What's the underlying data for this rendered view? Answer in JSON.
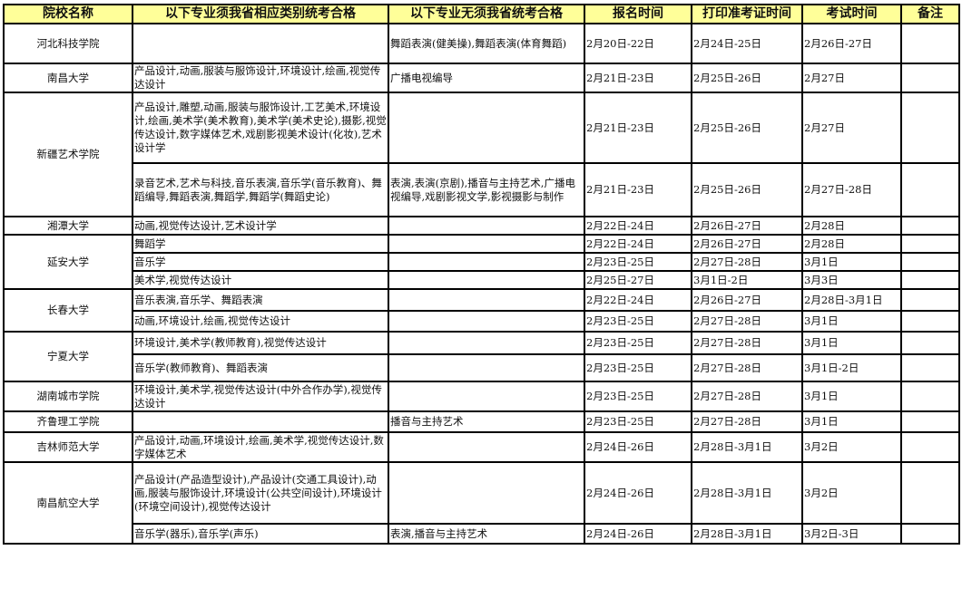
{
  "headers": [
    "院校名称",
    "以下专业须我省相应类别统考合格",
    "以下专业无须我省统考合格",
    "报名时间",
    "打印准考证时间",
    "考试时间",
    "备注"
  ],
  "rows": [
    {
      "school": "河北科技学院",
      "span": 1,
      "required": "",
      "not_required": "舞蹈表演(健美操),舞蹈表演(体育舞蹈)",
      "register": "2月20日-22日",
      "print": "2月24日-25日",
      "exam": "2月26日-27日",
      "note": ""
    },
    {
      "school": "南昌大学",
      "span": 1,
      "required": "产品设计,动画,服装与服饰设计,环境设计,绘画,视觉传达设计",
      "not_required": "广播电视编导",
      "register": "2月21日-23日",
      "print": "2月25日-26日",
      "exam": "2月27日",
      "note": ""
    },
    {
      "school": "新疆艺术学院",
      "span": 2,
      "required": "产品设计,雕塑,动画,服装与服饰设计,工艺美术,环境设计,绘画,美术学(美术教育),美术学(美术史论),摄影,视觉传达设计,数字媒体艺术,戏剧影视美术设计(化妆),艺术设计学",
      "not_required": "",
      "register": "2月21日-23日",
      "print": "2月25日-26日",
      "exam": "2月27日",
      "note": ""
    },
    {
      "school": null,
      "required": "录音艺术,艺术与科技,音乐表演,音乐学(音乐教育)、舞蹈编导,舞蹈表演,舞蹈学,舞蹈学(舞蹈史论)",
      "not_required": "表演,表演(京剧),播音与主持艺术,广播电视编导,戏剧影视文学,影视摄影与制作",
      "register": "2月21日-23日",
      "print": "2月25日-26日",
      "exam": "2月27日-28日",
      "note": ""
    },
    {
      "school": "湘潭大学",
      "span": 1,
      "required": "动画,视觉传达设计,艺术设计学",
      "not_required": "",
      "register": "2月22日-24日",
      "print": "2月26日-27日",
      "exam": "2月28日",
      "note": ""
    },
    {
      "school": "延安大学",
      "span": 3,
      "required": "舞蹈学",
      "not_required": "",
      "register": "2月22日-24日",
      "print": "2月26日-27日",
      "exam": "2月28日",
      "note": ""
    },
    {
      "school": null,
      "required": "音乐学",
      "not_required": "",
      "register": "2月23日-25日",
      "print": "2月27日-28日",
      "exam": "3月1日",
      "note": ""
    },
    {
      "school": null,
      "required": "美术学,视觉传达设计",
      "not_required": "",
      "register": "2月25日-27日",
      "print": "3月1日-2日",
      "exam": "3月3日",
      "note": ""
    },
    {
      "school": "长春大学",
      "span": 2,
      "required": "音乐表演,音乐学、舞蹈表演",
      "not_required": "",
      "register": "2月22日-24日",
      "print": "2月26日-27日",
      "exam": "2月28日-3月1日",
      "note": ""
    },
    {
      "school": null,
      "required": "动画,环境设计,绘画,视觉传达设计",
      "not_required": "",
      "register": "2月23日-25日",
      "print": "2月27日-28日",
      "exam": "3月1日",
      "note": ""
    },
    {
      "school": "宁夏大学",
      "span": 2,
      "required": "环境设计,美术学(教师教育),视觉传达设计",
      "not_required": "",
      "register": "2月23日-25日",
      "print": "2月27日-28日",
      "exam": "3月1日",
      "note": ""
    },
    {
      "school": null,
      "required": "音乐学(教师教育)、舞蹈表演",
      "not_required": "",
      "register": "2月23日-25日",
      "print": "2月27日-28日",
      "exam": "3月1日-2日",
      "note": ""
    },
    {
      "school": "湖南城市学院",
      "span": 1,
      "required": "环境设计,美术学,视觉传达设计(中外合作办学),视觉传达设计",
      "not_required": "",
      "register": "2月23日-25日",
      "print": "2月27日-28日",
      "exam": "3月1日",
      "note": ""
    },
    {
      "school": "齐鲁理工学院",
      "span": 1,
      "required": "",
      "not_required": "播音与主持艺术",
      "register": "2月23日-25日",
      "print": "2月27日-28日",
      "exam": "3月1日",
      "note": ""
    },
    {
      "school": "吉林师范大学",
      "span": 1,
      "required": "产品设计,动画,环境设计,绘画,美术学,视觉传达设计,数字媒体艺术",
      "not_required": "",
      "register": "2月24日-26日",
      "print": "2月28日-3月1日",
      "exam": "3月2日",
      "note": ""
    },
    {
      "school": "南昌航空大学",
      "span": 2,
      "required": "产品设计(产品造型设计),产品设计(交通工具设计),动画,服装与服饰设计,环境设计(公共空间设计),环境设计(环境空间设计),视觉传达设计",
      "not_required": "",
      "register": "2月24日-26日",
      "print": "2月28日-3月1日",
      "exam": "3月2日",
      "note": ""
    },
    {
      "school": null,
      "required": "音乐学(器乐),音乐学(声乐)",
      "not_required": "表演,播音与主持艺术",
      "register": "2月24日-26日",
      "print": "2月28日-3月1日",
      "exam": "3月2日-3日",
      "note": ""
    }
  ]
}
